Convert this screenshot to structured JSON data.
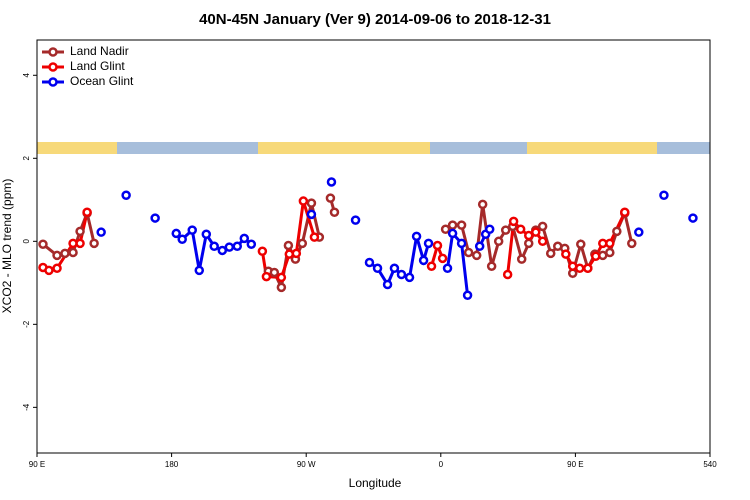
{
  "chart_data": {
    "type": "line",
    "title": "40N-45N January (Ver 9)   2014-09-06 to 2018-12-31",
    "x_label": "Longitude",
    "y_label": "XCO2 - MLO trend (ppm)",
    "xlim": [
      90,
      540
    ],
    "ylim": [
      -5.1,
      4.85
    ],
    "xticks": [
      {
        "value": 90,
        "label": "90 E"
      },
      180,
      {
        "value": 270,
        "label": "90 W"
      },
      {
        "value": 360,
        "label": "0"
      },
      {
        "value": 450,
        "label": "90 E"
      },
      540
    ],
    "yticks": [
      4,
      2,
      0,
      -2,
      -4
    ],
    "legend": "top-left",
    "series": [
      {
        "name": "Land Nadir",
        "color": "#a52a2a",
        "x": [
          94.0,
          103.4,
          108.7,
          114.1,
          118.8,
          123.5,
          128.2,
          null,
          244.7,
          248.7,
          253.4,
          258.1,
          262.8,
          267.4,
          273.5,
          278.8,
          null,
          286.2,
          288.9,
          null,
          363.2,
          367.9,
          373.9,
          378.6,
          384.0,
          388.0,
          394.0,
          398.7,
          403.4,
          408.1,
          414.1,
          418.8,
          423.5,
          428.1,
          433.5,
          438.2,
          442.9,
          448.2,
          453.6,
          458.3,
          463.0,
          468.3,
          473.0,
          477.7,
          483.0,
          487.7
        ],
        "values": [
          -0.07,
          -0.34,
          -0.29,
          -0.27,
          0.24,
          0.68,
          -0.05,
          null,
          -0.72,
          -0.75,
          -1.11,
          -0.1,
          -0.43,
          -0.05,
          0.92,
          0.1,
          null,
          1.04,
          0.7,
          null,
          0.29,
          0.39,
          0.39,
          -0.27,
          -0.34,
          0.89,
          -0.6,
          0,
          0.27,
          0.36,
          -0.43,
          -0.05,
          0.27,
          0.36,
          -0.29,
          -0.12,
          -0.17,
          -0.77,
          -0.07,
          -0.65,
          -0.31,
          -0.34,
          -0.27,
          0.24,
          0.68,
          -0.05
        ]
      },
      {
        "name": "Land Glint",
        "color": "#ee0000",
        "x": [
          94.0,
          98.0,
          103.4,
          114.1,
          118.8,
          123.5,
          null,
          240.7,
          243.4,
          253.4,
          258.7,
          263.4,
          268.1,
          275.5,
          null,
          353.8,
          357.8,
          361.2,
          null,
          404.7,
          408.7,
          413.4,
          418.8,
          423.5,
          428.1,
          null,
          443.6,
          448.2,
          452.9,
          458.3,
          463.6,
          468.3,
          473.0,
          483.0
        ],
        "values": [
          -0.63,
          -0.7,
          -0.65,
          -0.05,
          -0.05,
          0.7,
          null,
          -0.24,
          -0.85,
          -0.87,
          -0.31,
          -0.29,
          0.97,
          0.1,
          null,
          -0.6,
          -0.1,
          -0.41,
          null,
          -0.8,
          0.48,
          0.29,
          0.14,
          0.22,
          0,
          null,
          -0.31,
          -0.6,
          -0.65,
          -0.65,
          -0.36,
          -0.05,
          -0.05,
          0.7
        ]
      },
      {
        "name": "Ocean Glint",
        "color": "#0000ee",
        "x": [
          132.9,
          null,
          149.6,
          null,
          169.0,
          null,
          183.1,
          187.1,
          193.8,
          198.5,
          203.2,
          208.5,
          213.9,
          218.6,
          223.9,
          228.6,
          233.3,
          null,
          273.5,
          null,
          286.9,
          null,
          303.0,
          null,
          312.3,
          317.7,
          324.4,
          329.0,
          333.7,
          339.1,
          343.8,
          348.5,
          351.8,
          null,
          364.5,
          367.9,
          373.9,
          377.9,
          null,
          386.0,
          390.0,
          392.7,
          null,
          492.4,
          null,
          509.2,
          null,
          528.6
        ],
        "values": [
          0.22,
          null,
          1.11,
          null,
          0.56,
          null,
          0.19,
          0.05,
          0.27,
          -0.7,
          0.17,
          -0.12,
          -0.22,
          -0.14,
          -0.12,
          0.07,
          -0.07,
          null,
          0.65,
          null,
          1.43,
          null,
          0.51,
          null,
          -0.51,
          -0.65,
          -1.04,
          -0.65,
          -0.8,
          -0.87,
          0.12,
          -0.46,
          -0.05,
          null,
          -0.65,
          0.19,
          -0.05,
          -1.3,
          null,
          -0.12,
          0.17,
          0.29,
          null,
          0.22,
          null,
          1.11,
          null,
          0.56
        ]
      }
    ]
  }
}
